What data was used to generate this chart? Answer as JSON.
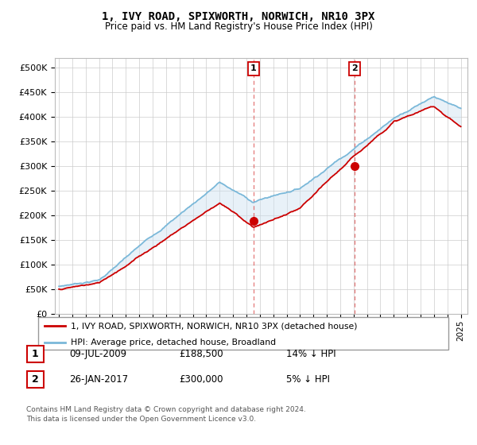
{
  "title": "1, IVY ROAD, SPIXWORTH, NORWICH, NR10 3PX",
  "subtitle": "Price paid vs. HM Land Registry's House Price Index (HPI)",
  "ylabel_ticks": [
    "£0",
    "£50K",
    "£100K",
    "£150K",
    "£200K",
    "£250K",
    "£300K",
    "£350K",
    "£400K",
    "£450K",
    "£500K"
  ],
  "ytick_values": [
    0,
    50000,
    100000,
    150000,
    200000,
    250000,
    300000,
    350000,
    400000,
    450000,
    500000
  ],
  "ylim": [
    0,
    520000
  ],
  "xlim_start": 1994.7,
  "xlim_end": 2025.5,
  "hpi_color": "#7ab8d9",
  "price_color": "#cc0000",
  "shaded_color": "#cce0f0",
  "transaction1_x": 2009.52,
  "transaction1_y": 188500,
  "transaction2_x": 2017.07,
  "transaction2_y": 300000,
  "vline_color": "#e06060",
  "legend_line1": "1, IVY ROAD, SPIXWORTH, NORWICH, NR10 3PX (detached house)",
  "legend_line2": "HPI: Average price, detached house, Broadland",
  "table_row1_num": "1",
  "table_row1_date": "09-JUL-2009",
  "table_row1_price": "£188,500",
  "table_row1_hpi": "14% ↓ HPI",
  "table_row2_num": "2",
  "table_row2_date": "26-JAN-2017",
  "table_row2_price": "£300,000",
  "table_row2_hpi": "5% ↓ HPI",
  "footnote": "Contains HM Land Registry data © Crown copyright and database right 2024.\nThis data is licensed under the Open Government Licence v3.0.",
  "background_color": "#ffffff",
  "grid_color": "#cccccc"
}
